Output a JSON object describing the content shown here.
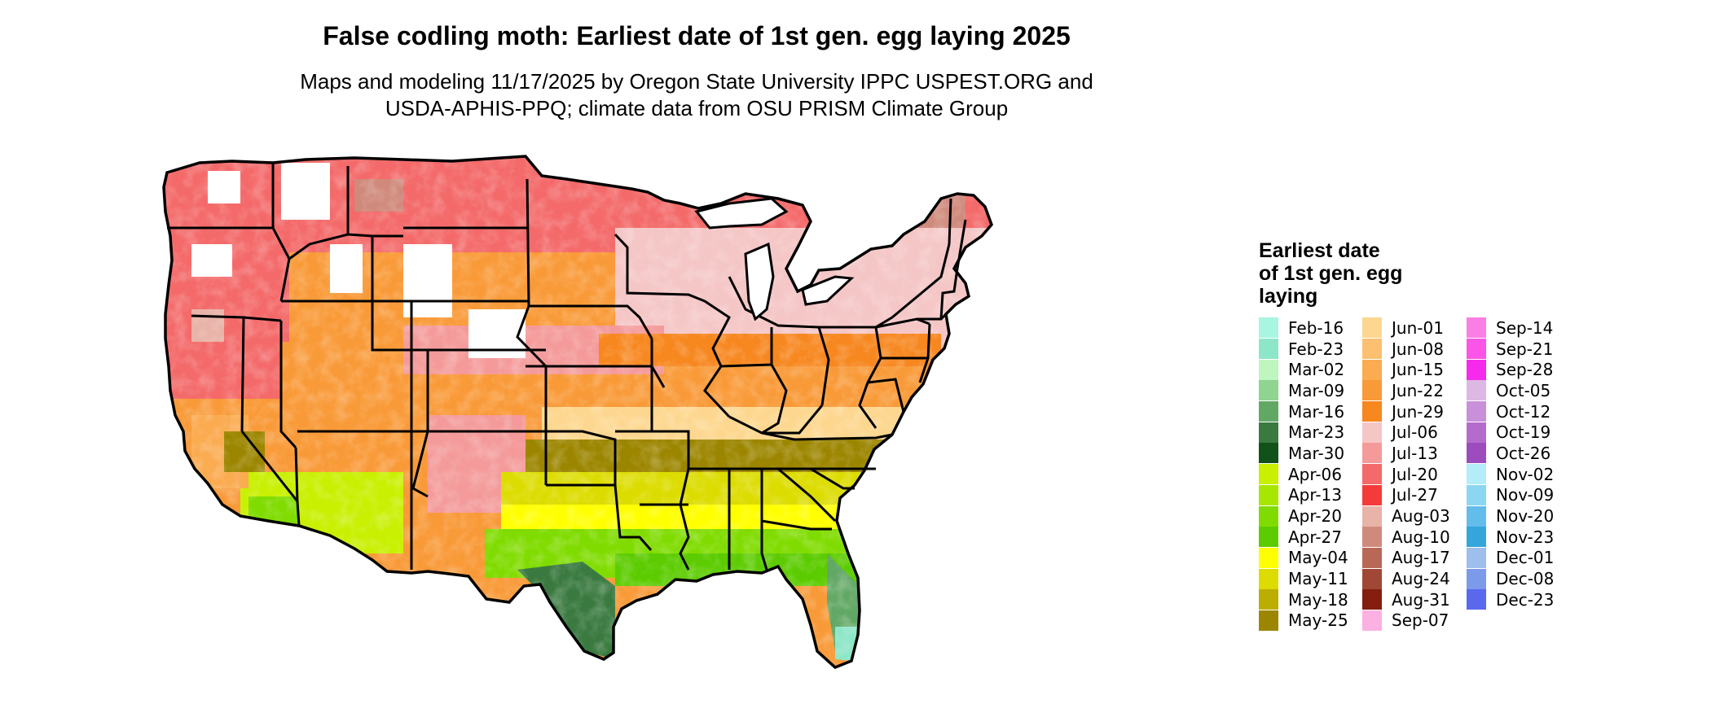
{
  "title": "False codling moth: Earliest date of 1st gen. egg laying 2025",
  "subtitle_line1": "Maps and modeling 11/17/2025 by Oregon State University IPPC USPEST.ORG and",
  "subtitle_line2": "USDA-APHIS-PPQ; climate data from OSU PRISM Climate Group",
  "legend": {
    "title_line1": "Earliest date",
    "title_line2": "of 1st gen. egg",
    "title_line3": "laying",
    "columns": [
      [
        {
          "label": "Feb-16",
          "color": "#a8f5e2"
        },
        {
          "label": "Feb-23",
          "color": "#8ee6c8"
        },
        {
          "label": "Mar-02",
          "color": "#bff5bf"
        },
        {
          "label": "Mar-09",
          "color": "#8fd490"
        },
        {
          "label": "Mar-16",
          "color": "#62a865"
        },
        {
          "label": "Mar-23",
          "color": "#3a7a40"
        },
        {
          "label": "Mar-30",
          "color": "#10521a"
        },
        {
          "label": "Apr-06",
          "color": "#c8f000"
        },
        {
          "label": "Apr-13",
          "color": "#a6e600"
        },
        {
          "label": "Apr-20",
          "color": "#80dc00"
        },
        {
          "label": "Apr-27",
          "color": "#5ccc00"
        },
        {
          "label": "May-04",
          "color": "#ffff00"
        },
        {
          "label": "May-11",
          "color": "#dcdc00"
        },
        {
          "label": "May-18",
          "color": "#bcae00"
        },
        {
          "label": "May-25",
          "color": "#9c8600"
        }
      ],
      [
        {
          "label": "Jun-01",
          "color": "#fdd78f"
        },
        {
          "label": "Jun-08",
          "color": "#fcc070"
        },
        {
          "label": "Jun-15",
          "color": "#fbab50"
        },
        {
          "label": "Jun-22",
          "color": "#f99a38"
        },
        {
          "label": "Jun-29",
          "color": "#f7871f"
        },
        {
          "label": "Jul-06",
          "color": "#f5c6c6"
        },
        {
          "label": "Jul-13",
          "color": "#f49a9a"
        },
        {
          "label": "Jul-20",
          "color": "#f46a6a"
        },
        {
          "label": "Jul-27",
          "color": "#f53a3a"
        },
        {
          "label": "Aug-03",
          "color": "#e8b3a8"
        },
        {
          "label": "Aug-10",
          "color": "#d08a7c"
        },
        {
          "label": "Aug-17",
          "color": "#b86857"
        },
        {
          "label": "Aug-24",
          "color": "#a04835"
        },
        {
          "label": "Aug-31",
          "color": "#841e0e"
        },
        {
          "label": "Sep-07",
          "color": "#fdb0e2"
        }
      ],
      [
        {
          "label": "Sep-14",
          "color": "#fb7ee4"
        },
        {
          "label": "Sep-21",
          "color": "#fa55e6"
        },
        {
          "label": "Sep-28",
          "color": "#f52aec"
        },
        {
          "label": "Oct-05",
          "color": "#dcb8e4"
        },
        {
          "label": "Oct-12",
          "color": "#c890d8"
        },
        {
          "label": "Oct-19",
          "color": "#b46ccc"
        },
        {
          "label": "Oct-26",
          "color": "#9c4cbc"
        },
        {
          "label": "Nov-02",
          "color": "#b4ecfa"
        },
        {
          "label": "Nov-09",
          "color": "#8cd6f2"
        },
        {
          "label": "Nov-20",
          "color": "#64bceb"
        },
        {
          "label": "Nov-23",
          "color": "#34a6dc"
        },
        {
          "label": "Dec-01",
          "color": "#9ebeec"
        },
        {
          "label": "Dec-08",
          "color": "#7c9aea"
        },
        {
          "label": "Dec-23",
          "color": "#5a68ee"
        }
      ]
    ]
  }
}
